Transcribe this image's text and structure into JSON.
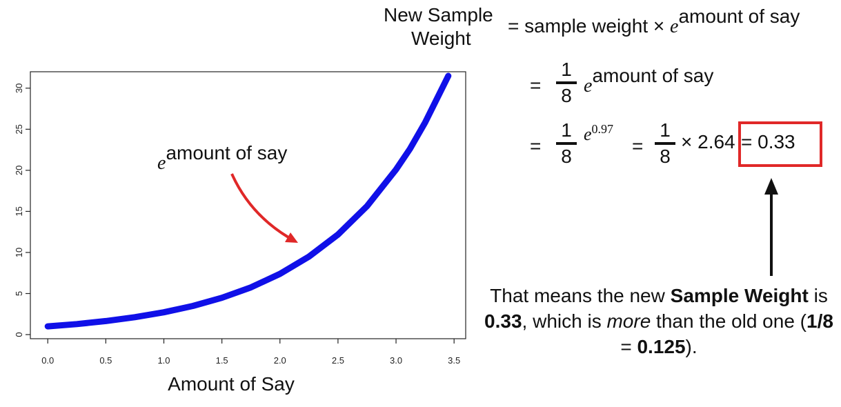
{
  "chart_data": {
    "type": "line",
    "xlabel": "Amount of Say",
    "ylabel": "",
    "xlim": [
      -0.15,
      3.6
    ],
    "ylim": [
      -0.5,
      32
    ],
    "xticks": [
      "0.0",
      "0.5",
      "1.0",
      "1.5",
      "2.0",
      "2.5",
      "3.0",
      "3.5"
    ],
    "yticks": [
      "0",
      "5",
      "10",
      "15",
      "20",
      "25",
      "30"
    ],
    "series": [
      {
        "color": "#1010e8",
        "x": [
          0.0,
          0.25,
          0.5,
          0.75,
          1.0,
          1.25,
          1.5,
          1.75,
          2.0,
          2.25,
          2.5,
          2.75,
          3.0,
          3.12,
          3.25,
          3.45
        ],
        "y": [
          1.0,
          1.28,
          1.65,
          2.12,
          2.72,
          3.49,
          4.48,
          5.75,
          7.39,
          9.49,
          12.18,
          15.64,
          20.09,
          22.6,
          25.8,
          31.5
        ]
      }
    ],
    "annotation": {
      "base": "e",
      "exponent": "amount of say",
      "arrow_color": "#e02828"
    }
  },
  "formula": {
    "lhs_line1": "New Sample",
    "lhs_line2": "Weight",
    "eq1_text": "= sample weight × ",
    "e": "e",
    "exp": "amount of say",
    "eq": "=",
    "frac_num": "1",
    "frac_den": "8",
    "exp_097": "0.97",
    "times_264": "× 2.64",
    "result": "= 0.33"
  },
  "conclusion": {
    "p1": "That means the new ",
    "b1": "Sample Weight",
    "p2": " is ",
    "b2": "0.33",
    "p3": ", which is ",
    "i1": "more",
    "p4": " than the old one (",
    "b3": "1/8",
    "p5": " = ",
    "b4": "0.125",
    "p6": ")."
  },
  "colors": {
    "highlight_box": "#e02828",
    "arrow": "#111111"
  }
}
